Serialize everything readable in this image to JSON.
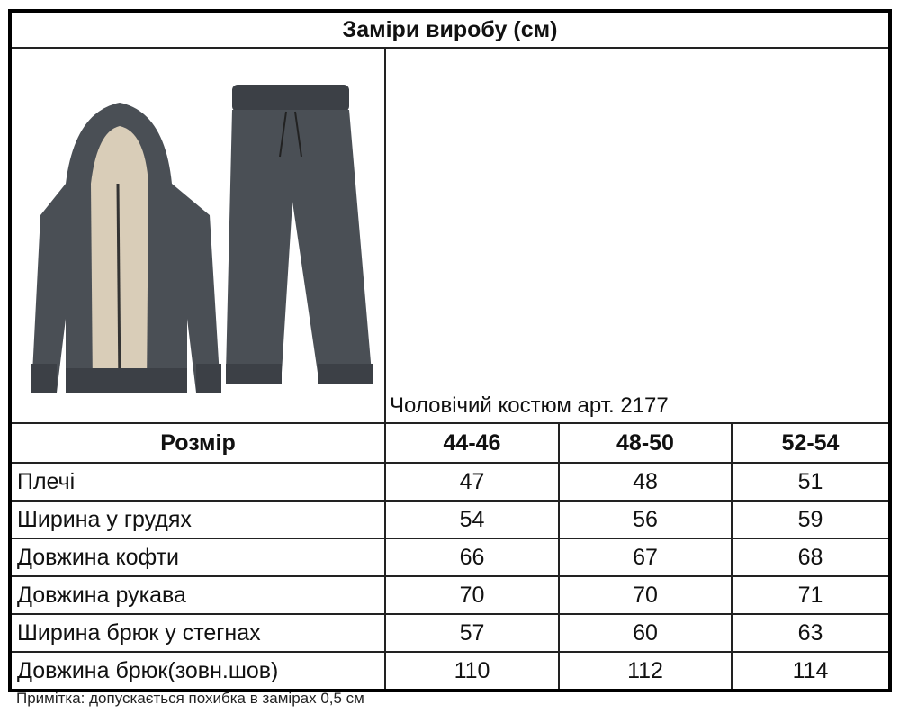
{
  "title": "Заміри виробу (см)",
  "product_caption": "Чоловічий костюм арт. 2177",
  "image": {
    "subject": "tracksuit-jacket-and-pants",
    "color": "#4a4f55",
    "lining_color": "#d9cdb8"
  },
  "table": {
    "header": [
      "Розмір",
      "44-46",
      "48-50",
      "52-54"
    ],
    "rows": [
      {
        "label": "Плечі",
        "values": [
          "47",
          "48",
          "51"
        ]
      },
      {
        "label": "Ширина у грудях",
        "values": [
          "54",
          "56",
          "59"
        ]
      },
      {
        "label": "Довжина кофти",
        "values": [
          "66",
          "67",
          "68"
        ]
      },
      {
        "label": "Довжина рукава",
        "values": [
          "70",
          "70",
          "71"
        ]
      },
      {
        "label": "Ширина брюк у стегнах",
        "values": [
          "57",
          "60",
          "63"
        ]
      },
      {
        "label": "Довжина брюк(зовн.шов)",
        "values": [
          "110",
          "112",
          "114"
        ]
      }
    ]
  },
  "note": "Примітка: допускається похибка в замірах 0,5 см"
}
